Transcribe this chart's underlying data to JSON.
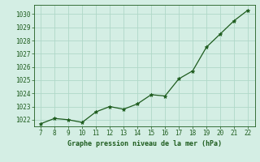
{
  "x": [
    7,
    8,
    9,
    10,
    11,
    12,
    13,
    14,
    15,
    16,
    17,
    18,
    19,
    20,
    21,
    22
  ],
  "y": [
    1021.7,
    1022.1,
    1022.0,
    1021.8,
    1022.6,
    1023.0,
    1022.8,
    1023.2,
    1023.9,
    1023.8,
    1025.1,
    1025.7,
    1027.5,
    1028.5,
    1029.5,
    1030.3
  ],
  "line_color": "#1e5c1e",
  "marker_color": "#1e5c1e",
  "bg_color": "#d4eee4",
  "grid_color": "#b0d8c8",
  "title": "Graphe pression niveau de la mer (hPa)",
  "title_color": "#1e5c1e",
  "ylim": [
    1021.5,
    1030.7
  ],
  "xlim": [
    6.5,
    22.5
  ],
  "yticks": [
    1022,
    1023,
    1024,
    1025,
    1026,
    1027,
    1028,
    1029,
    1030
  ],
  "xticks": [
    7,
    8,
    9,
    10,
    11,
    12,
    13,
    14,
    15,
    16,
    17,
    18,
    19,
    20,
    21,
    22
  ],
  "tick_fontsize": 5.5,
  "title_fontsize": 6.0
}
